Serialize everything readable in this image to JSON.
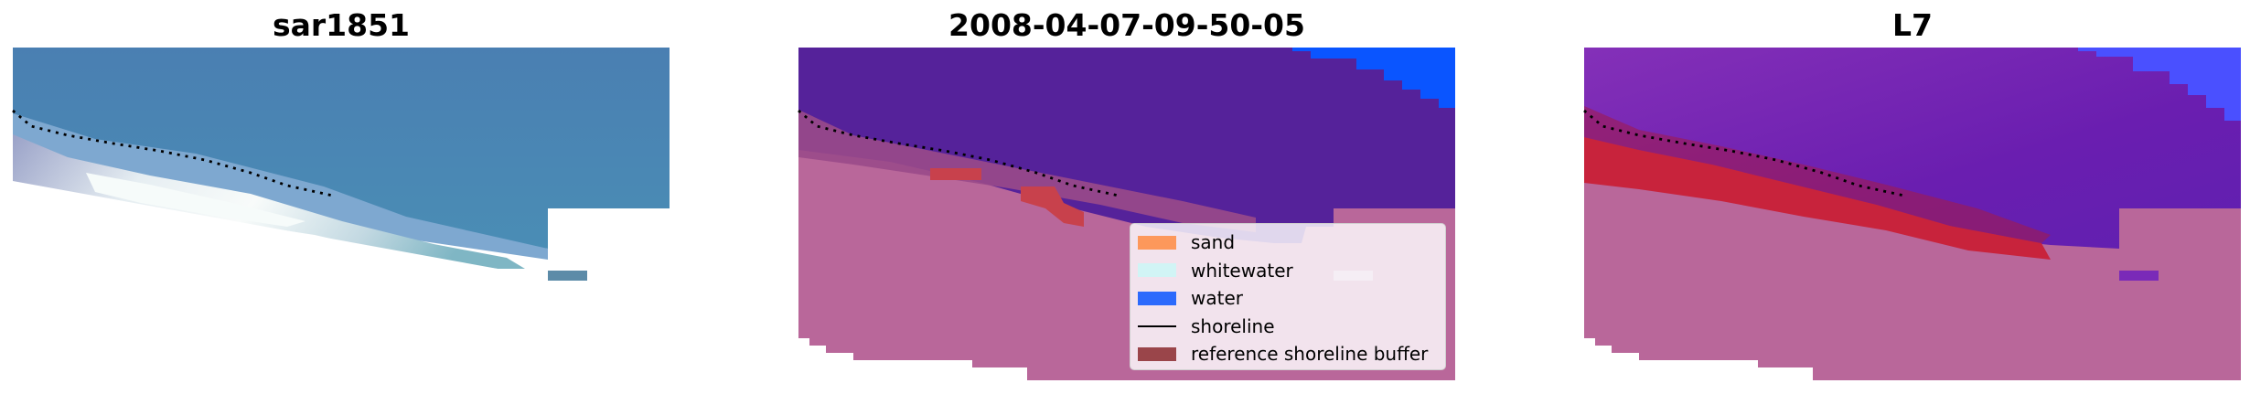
{
  "panels": [
    {
      "title": "sar1851"
    },
    {
      "title": "2008-04-07-09-50-05"
    },
    {
      "title": "L7"
    }
  ],
  "legend": {
    "items": [
      {
        "label": "sand",
        "color": "#ff8c42",
        "kind": "patch"
      },
      {
        "label": "whitewater",
        "color": "#ccf7f7",
        "kind": "patch"
      },
      {
        "label": "water",
        "color": "#0a55ff",
        "kind": "patch"
      },
      {
        "label": "shoreline",
        "color": "#000000",
        "kind": "line"
      },
      {
        "label": "reference shoreline buffer",
        "color": "#8b2a2e",
        "kind": "patch"
      }
    ]
  },
  "colors": {
    "rgb_sea": "#4b88b4",
    "rgb_foam": "#e8f4f2",
    "nodata_pink": "#b9679a",
    "class_water_purple": "#55229a",
    "class_water_blue": "#0a55ff",
    "class_sand_red": "#c8233c",
    "overlay_deep_purple": "#6a1eb0",
    "overlay_blue": "#4a50ff"
  }
}
